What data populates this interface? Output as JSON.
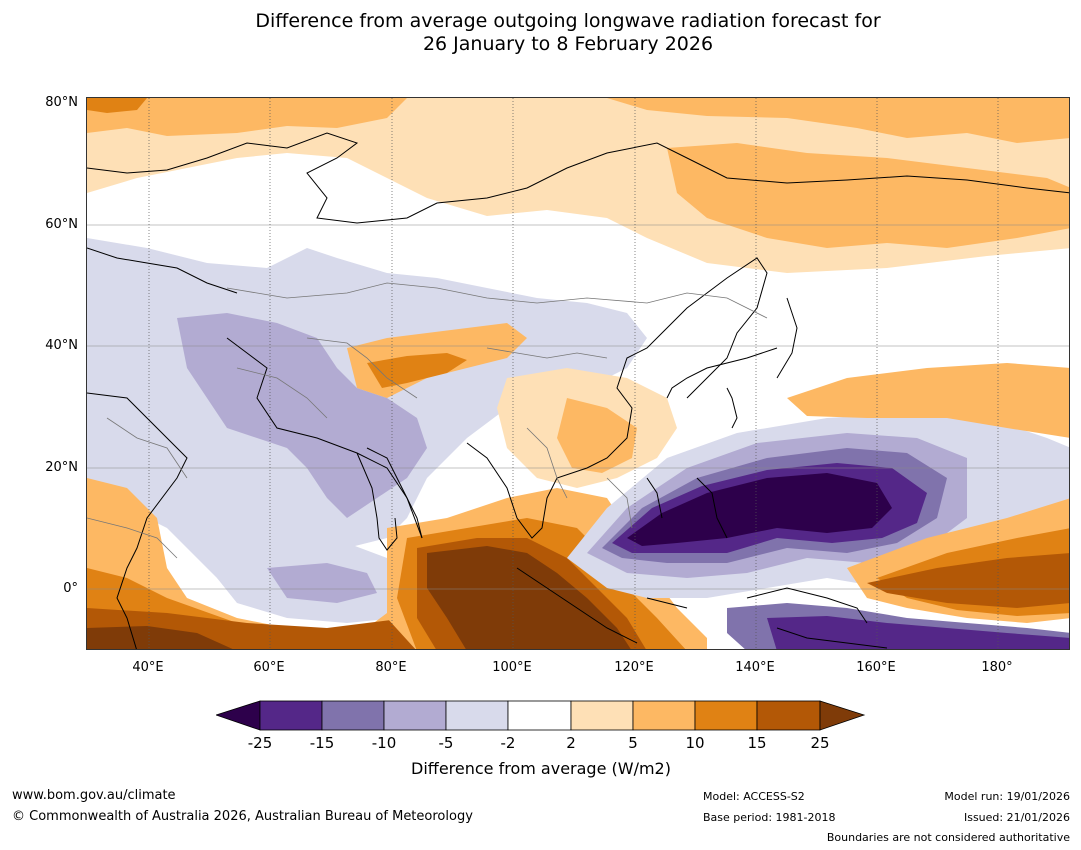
{
  "title": {
    "line1": "Difference from average outgoing longwave radiation forecast for",
    "line2": "26 January to 8 February 2026"
  },
  "latitude_labels": [
    "80°N",
    "60°N",
    "40°N",
    "20°N",
    "0°"
  ],
  "longitude_labels": [
    "40°E",
    "60°E",
    "80°E",
    "100°E",
    "120°E",
    "140°E",
    "160°E",
    "180°"
  ],
  "colorbar": {
    "ticks": [
      "-25",
      "-15",
      "-10",
      "-5",
      "-2",
      "2",
      "5",
      "10",
      "15",
      "25"
    ],
    "label": "Difference from average (W/m2)",
    "colors": {
      "under": "#2d004b",
      "c1": "#542788",
      "c2": "#8073ac",
      "c3": "#b2abd2",
      "c4": "#d8daeb",
      "c5": "#ffffff",
      "c6": "#fee0b6",
      "c7": "#fdb863",
      "c8": "#e08214",
      "c9": "#b35806",
      "over": "#7f3b08"
    }
  },
  "footer": {
    "website": "www.bom.gov.au/climate",
    "copyright": "© Commonwealth of Australia 2026, Australian Bureau of Meteorology",
    "model": "Model: ACCESS-S2",
    "base_period": "Base period: 1981-2018",
    "model_run": "Model run: 19/01/2026",
    "issued": "Issued: 21/01/2026",
    "disclaimer": "Boundaries are not considered authoritative"
  }
}
